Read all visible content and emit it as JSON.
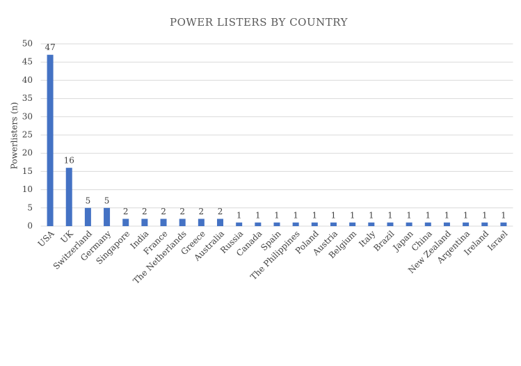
{
  "chart_data": {
    "type": "bar",
    "title": "POWER LISTERS BY COUNTRY",
    "y_label": "Powerlisters (n)",
    "categories": [
      "USA",
      "UK",
      "Switzerland",
      "Germany",
      "Singapore",
      "India",
      "France",
      "The Netherlands",
      "Greece",
      "Australia",
      "Russia",
      "Canada",
      "Spain",
      "The Philippines",
      "Poland",
      "Austria",
      "Belgium",
      "Italy",
      "Brazil",
      "Japan",
      "China",
      "New Zealand",
      "Argentina",
      "Ireland",
      "Israel"
    ],
    "values": [
      47,
      16,
      5,
      5,
      2,
      2,
      2,
      2,
      2,
      2,
      1,
      1,
      1,
      1,
      1,
      1,
      1,
      1,
      1,
      1,
      1,
      1,
      1,
      1,
      1
    ],
    "color": "#4472c4",
    "ylim": [
      0,
      50
    ],
    "yticks": [
      0,
      5,
      10,
      15,
      20,
      25,
      30,
      35,
      40,
      45,
      50
    ],
    "grid": true
  }
}
